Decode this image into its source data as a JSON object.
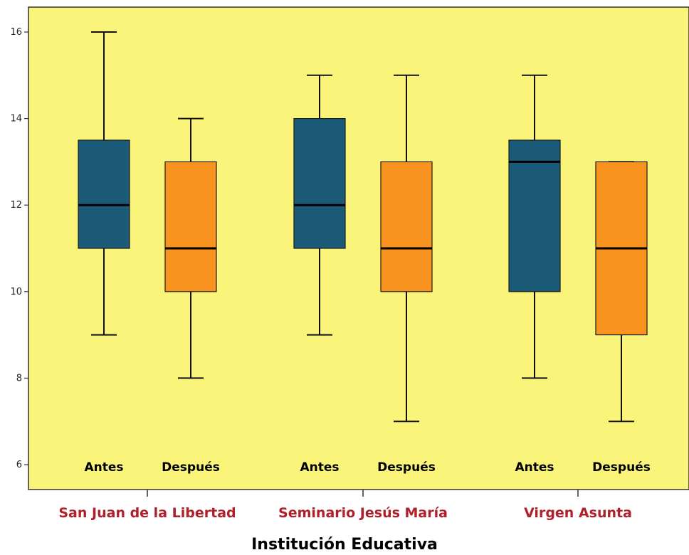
{
  "chart_data": {
    "type": "boxplot",
    "xlabel": "Institución Educativa",
    "ylabel": "",
    "ylim": [
      5.4,
      16.6
    ],
    "yticks": [
      6,
      8,
      10,
      12,
      14,
      16
    ],
    "grid": false,
    "legend": "none",
    "groups": [
      {
        "name": "San Juan de la Libertad",
        "boxes": [
          {
            "label": "Antes",
            "min": 9,
            "q1": 11,
            "median": 12,
            "q3": 13.5,
            "max": 16,
            "color": "#1b5b77"
          },
          {
            "label": "Después",
            "min": 8,
            "q1": 10,
            "median": 11,
            "q3": 13,
            "max": 14,
            "color": "#f7931e"
          }
        ]
      },
      {
        "name": "Seminario Jesús María",
        "boxes": [
          {
            "label": "Antes",
            "min": 9,
            "q1": 11,
            "median": 12,
            "q3": 14,
            "max": 15,
            "color": "#1b5b77"
          },
          {
            "label": "Después",
            "min": 7,
            "q1": 10,
            "median": 11,
            "q3": 13,
            "max": 15,
            "color": "#f7931e"
          }
        ]
      },
      {
        "name": "Virgen Asunta",
        "boxes": [
          {
            "label": "Antes",
            "min": 8,
            "q1": 10,
            "median": 13,
            "q3": 13.5,
            "max": 15,
            "color": "#1b5b77"
          },
          {
            "label": "Después",
            "min": 7,
            "q1": 9,
            "median": 11,
            "q3": 13,
            "max": 13,
            "color": "#f7931e"
          }
        ]
      }
    ]
  },
  "colors": {
    "plot_background": "#faf57a",
    "group_label": "#b0202a",
    "antes": "#1b5b77",
    "despues": "#f7931e"
  }
}
